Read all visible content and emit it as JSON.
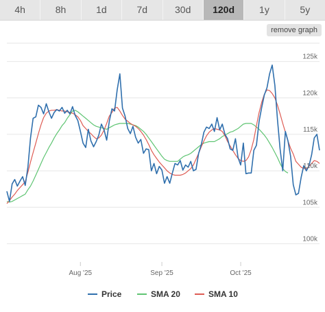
{
  "tabs": [
    {
      "label": "4h"
    },
    {
      "label": "8h"
    },
    {
      "label": "1d"
    },
    {
      "label": "7d"
    },
    {
      "label": "30d"
    },
    {
      "label": "120d"
    },
    {
      "label": "1y"
    },
    {
      "label": "5y"
    }
  ],
  "active_tab": "120d",
  "remove_graph_label": "remove graph",
  "chart_data": {
    "type": "line",
    "x_tick_labels": [
      "Aug '25",
      "Sep '25",
      "Oct '25"
    ],
    "x_ticks": [
      28,
      59,
      89
    ],
    "xlim": [
      0,
      119
    ],
    "y_tick_labels": [
      "100k",
      "105k",
      "110k",
      "115k",
      "120k",
      "125k"
    ],
    "y_ticks": [
      100000,
      105000,
      110000,
      115000,
      120000,
      125000
    ],
    "ylim": [
      97500,
      127500
    ],
    "grid": true,
    "legend_position": "bottom",
    "series": [
      {
        "name": "Price",
        "color": "#2f6fad",
        "values": [
          107200,
          105800,
          108200,
          108800,
          107900,
          108600,
          109200,
          108000,
          110500,
          114500,
          117200,
          117400,
          119000,
          118700,
          117800,
          119200,
          118100,
          117200,
          118000,
          118400,
          118200,
          118700,
          117900,
          118300,
          117800,
          118800,
          117600,
          116900,
          115400,
          113800,
          113200,
          115700,
          114100,
          113300,
          114000,
          114900,
          116400,
          115600,
          114200,
          116800,
          118500,
          118200,
          121100,
          123300,
          118600,
          117500,
          115800,
          115100,
          116100,
          114600,
          113800,
          114300,
          112400,
          113000,
          112900,
          110000,
          111000,
          109600,
          110600,
          110100,
          108300,
          109200,
          108300,
          109700,
          111000,
          110800,
          111400,
          110100,
          110800,
          110500,
          111300,
          110000,
          110200,
          112400,
          113600,
          115300,
          116000,
          115800,
          116400,
          115400,
          117300,
          115600,
          116400,
          115000,
          114400,
          113000,
          112800,
          114400,
          111800,
          110800,
          113800,
          109600,
          109700,
          109700,
          112800,
          113500,
          116800,
          118700,
          120400,
          121400,
          123300,
          124500,
          121700,
          117000,
          113000,
          110000,
          115400,
          114100,
          112000,
          108100,
          106700,
          106900,
          109100,
          110700,
          110000,
          110700,
          112200,
          114500,
          115000,
          112800
        ]
      },
      {
        "name": "SMA 20",
        "color": "#5ec472",
        "values": [
          105800,
          105700,
          105800,
          106000,
          106200,
          106400,
          106600,
          106800,
          107400,
          107900,
          108600,
          109400,
          110200,
          111000,
          111800,
          112500,
          113200,
          113800,
          114500,
          115100,
          115600,
          116200,
          116600,
          117200,
          117700,
          118200,
          118300,
          118100,
          117800,
          117500,
          117200,
          116900,
          116600,
          116300,
          116100,
          116000,
          115900,
          115800,
          115700,
          115900,
          116100,
          116300,
          116400,
          116500,
          116500,
          116500,
          116500,
          116400,
          116300,
          116200,
          116000,
          115700,
          115400,
          115000,
          114500,
          114000,
          113500,
          113000,
          112500,
          112000,
          111600,
          111400,
          111300,
          111300,
          111300,
          111300,
          111600,
          111900,
          112100,
          112200,
          112400,
          112700,
          113000,
          113300,
          113600,
          113800,
          113900,
          114000,
          114000,
          114000,
          114200,
          114400,
          114700,
          114900,
          115100,
          115300,
          115400,
          115600,
          115800,
          116100,
          116400,
          116500,
          116500,
          116500,
          116300,
          116000,
          115700,
          115300,
          114900,
          114400,
          113800,
          113200,
          112500,
          111800,
          111000,
          110300,
          109900,
          109700
        ]
      },
      {
        "name": "SMA 10",
        "color": "#de5b53",
        "values": [
          105500,
          105900,
          106400,
          106800,
          107300,
          107700,
          108100,
          108500,
          109800,
          111200,
          112500,
          113800,
          115100,
          116300,
          117300,
          117900,
          118200,
          118300,
          118300,
          118400,
          118300,
          118200,
          118200,
          118100,
          118000,
          117900,
          117700,
          117400,
          116900,
          116200,
          115800,
          115400,
          115100,
          114700,
          114400,
          114500,
          114900,
          115600,
          116500,
          117500,
          118000,
          118600,
          118700,
          118200,
          117600,
          117100,
          116800,
          116500,
          116300,
          116100,
          115800,
          115400,
          114900,
          114300,
          113600,
          112800,
          112200,
          111700,
          111200,
          110800,
          110400,
          110000,
          109700,
          109500,
          109400,
          109400,
          109400,
          109500,
          109700,
          110000,
          110300,
          110800,
          111600,
          112400,
          113300,
          114100,
          114800,
          115300,
          115600,
          115800,
          115700,
          115600,
          115400,
          114800,
          114000,
          113400,
          112800,
          112200,
          111700,
          111400,
          111300,
          111400,
          111900,
          112900,
          114300,
          116200,
          118000,
          119400,
          120500,
          121100,
          121000,
          120600,
          120000,
          119000,
          117800,
          116500,
          115300,
          114100,
          113100,
          112300,
          111300,
          110900,
          110500,
          110300,
          110300,
          110600,
          111000,
          111400,
          111300,
          111000
        ]
      }
    ]
  }
}
